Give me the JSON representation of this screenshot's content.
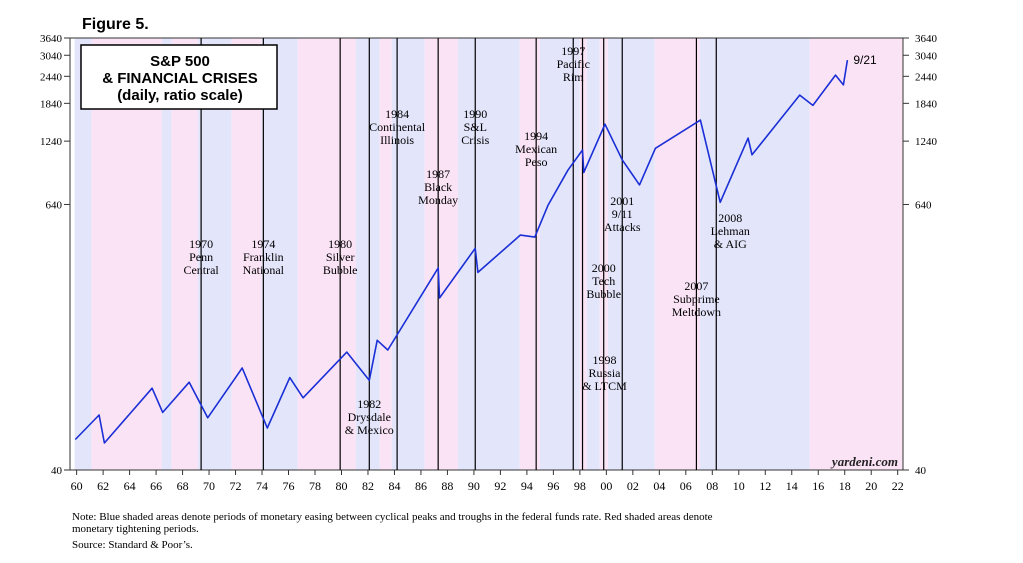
{
  "chart_data": {
    "type": "line",
    "figure_label": "Figure 5.",
    "title_lines": [
      "S&P 500",
      "& FINANCIAL CRISES",
      "(daily, ratio scale)"
    ],
    "watermark": "yardeni.com",
    "end_label": "9/21",
    "log_scale": true,
    "color": "#1a2fd6",
    "x": [
      1959.9,
      1961.7,
      1962.1,
      1965.7,
      1966.5,
      1968.5,
      1969.9,
      1972.5,
      1974.4,
      1976.1,
      1977.1,
      1980.4,
      1982.1,
      1982.7,
      1983.5,
      1987.3,
      1987.4,
      1990.1,
      1990.3,
      1993.5,
      1994.6,
      1995.6,
      1997.1,
      1998.2,
      1998.3,
      1999.9,
      2001.2,
      2002.5,
      2003.7,
      2007.1,
      2008.6,
      2010.7,
      2011.0,
      2014.6,
      2015.6,
      2017.3,
      2017.9,
      2018.2
    ],
    "values": [
      55,
      71,
      53,
      94,
      73,
      100,
      69,
      116,
      62,
      105,
      85,
      137,
      102,
      155,
      140,
      330,
      241,
      405,
      315,
      465,
      455,
      636,
      915,
      1130,
      895,
      1480,
      1020,
      785,
      1150,
      1545,
      655,
      1280,
      1075,
      2005,
      1800,
      2470,
      2230,
      2890
    ],
    "xlim": [
      1959.5,
      2022.4
    ],
    "ylim": [
      40,
      3640
    ],
    "yticks": [
      40,
      640,
      1240,
      1840,
      2440,
      3040,
      3640
    ],
    "xticks": [
      {
        "value": 1960,
        "label": "60"
      },
      {
        "value": 1962,
        "label": "62"
      },
      {
        "value": 1964,
        "label": "64"
      },
      {
        "value": 1966,
        "label": "66"
      },
      {
        "value": 1968,
        "label": "68"
      },
      {
        "value": 1970,
        "label": "70"
      },
      {
        "value": 1972,
        "label": "72"
      },
      {
        "value": 1974,
        "label": "74"
      },
      {
        "value": 1976,
        "label": "76"
      },
      {
        "value": 1978,
        "label": "78"
      },
      {
        "value": 1980,
        "label": "80"
      },
      {
        "value": 1982,
        "label": "82"
      },
      {
        "value": 1984,
        "label": "84"
      },
      {
        "value": 1986,
        "label": "86"
      },
      {
        "value": 1988,
        "label": "88"
      },
      {
        "value": 1990,
        "label": "90"
      },
      {
        "value": 1992,
        "label": "92"
      },
      {
        "value": 1994,
        "label": "94"
      },
      {
        "value": 1996,
        "label": "96"
      },
      {
        "value": 1998,
        "label": "98"
      },
      {
        "value": 2000,
        "label": "00"
      },
      {
        "value": 2002,
        "label": "02"
      },
      {
        "value": 2004,
        "label": "04"
      },
      {
        "value": 2006,
        "label": "06"
      },
      {
        "value": 2008,
        "label": "08"
      },
      {
        "value": 2010,
        "label": "10"
      },
      {
        "value": 2012,
        "label": "12"
      },
      {
        "value": 2014,
        "label": "14"
      },
      {
        "value": 2016,
        "label": "16"
      },
      {
        "value": 2018,
        "label": "18"
      },
      {
        "value": 2020,
        "label": "20"
      },
      {
        "value": 2022,
        "label": "22"
      }
    ],
    "easing_color": "#e3e5fb",
    "tightening_color": "#fbe3f6",
    "easing_periods": [
      [
        1959.85,
        1961.13
      ],
      [
        1966.42,
        1967.18
      ],
      [
        1969.14,
        1971.71
      ],
      [
        1973.97,
        1976.69
      ],
      [
        1981.07,
        1982.89
      ],
      [
        1983.79,
        1986.28
      ],
      [
        1988.78,
        1993.46
      ],
      [
        1994.97,
        1997.99
      ],
      [
        1998.52,
        1999.5
      ],
      [
        2000.11,
        2003.66
      ],
      [
        2007.05,
        2015.36
      ]
    ],
    "tightening_periods": [
      [
        1961.13,
        1966.42
      ],
      [
        1967.18,
        1969.14
      ],
      [
        1971.71,
        1973.97
      ],
      [
        1976.69,
        1981.07
      ],
      [
        1982.89,
        1983.79
      ],
      [
        1986.28,
        1988.78
      ],
      [
        1993.46,
        1994.97
      ],
      [
        1997.99,
        1998.52
      ],
      [
        1999.5,
        2000.11
      ],
      [
        2003.66,
        2007.05
      ],
      [
        2015.36,
        2022.4
      ]
    ],
    "events": [
      {
        "year": 1969.4,
        "label": [
          "1970",
          "Penn",
          "Central"
        ]
      },
      {
        "year": 1974.1,
        "label": [
          "1974",
          "Franklin",
          "National"
        ]
      },
      {
        "year": 1979.9,
        "label": [
          "1980",
          "Silver",
          "Bubble"
        ]
      },
      {
        "year": 1982.1,
        "label": [
          "1982",
          "Drysdale",
          "& Mexico"
        ]
      },
      {
        "year": 1984.2,
        "label": [
          "1984",
          "Continental",
          "Illinois"
        ]
      },
      {
        "year": 1987.3,
        "label": [
          "1987",
          "Black",
          "Monday"
        ]
      },
      {
        "year": 1990.1,
        "label": [
          "1990",
          "S&L",
          "Crisis"
        ]
      },
      {
        "year": 1994.7,
        "label": [
          "1994",
          "Mexican",
          "Peso"
        ]
      },
      {
        "year": 1997.5,
        "label": [
          "1997",
          "Pacific",
          "Rim"
        ]
      },
      {
        "year": 1998.2,
        "label": [
          "1998",
          "Russia",
          "& LTCM"
        ]
      },
      {
        "year": 1999.8,
        "label": [
          "2000",
          "Tech",
          "Bubble"
        ]
      },
      {
        "year": 2001.2,
        "label": [
          "2001",
          "9/11",
          "Attacks"
        ]
      },
      {
        "year": 2006.8,
        "label": [
          "2007",
          "Subprime",
          "Meltdown"
        ]
      },
      {
        "year": 2008.3,
        "label": [
          "2008",
          "Lehman",
          "& AIG"
        ]
      }
    ],
    "note": [
      "Note: Blue shaded areas denote periods of monetary easing between cyclical peaks and troughs in the federal funds rate. Red shaded areas denote",
      "monetary tightening periods."
    ],
    "source": "Source: Standard & Poor’s."
  }
}
